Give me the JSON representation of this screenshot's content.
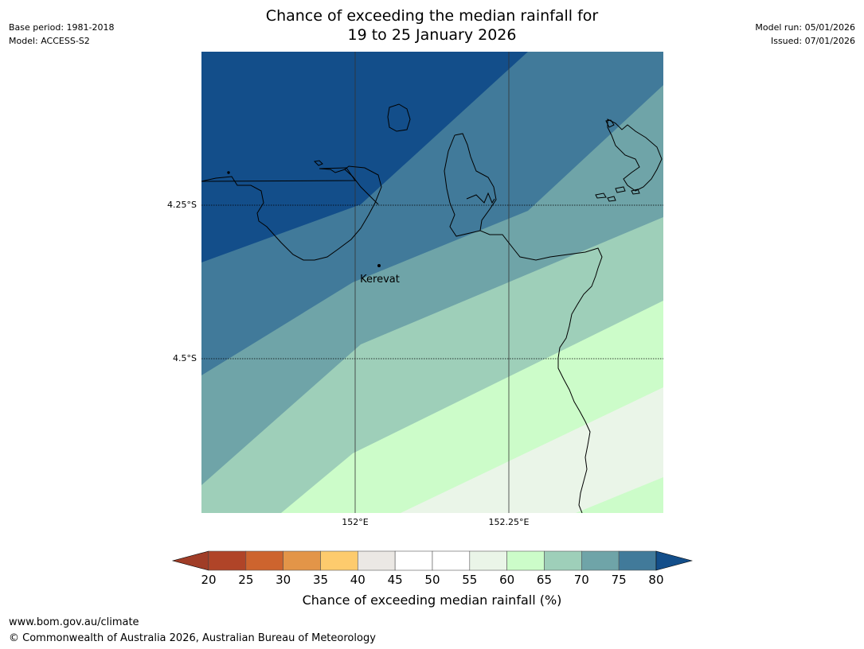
{
  "title": {
    "line1": "Chance of exceeding the median rainfall for",
    "line2": "19 to 25 January 2026"
  },
  "meta_left": {
    "base_period": "Base period: 1981-2018",
    "model": "Model: ACCESS-S2"
  },
  "meta_right": {
    "model_run": "Model run: 05/01/2026",
    "issued": "Issued: 07/01/2026"
  },
  "map": {
    "lat_labels": [
      "4.25°S",
      "4.5°S"
    ],
    "lon_labels": [
      "152°E",
      "152.25°E"
    ],
    "place": {
      "name": "Kerevat"
    },
    "zone_colors": {
      "above_75": "#134e8a",
      "70_75": "#417a9a",
      "65_70": "#6fa4a8",
      "60_65": "#9ecfb9",
      "55_60": "#ccfcc9",
      "50_55": "#eaf5e8"
    }
  },
  "colorbar": {
    "ticks": [
      "20",
      "25",
      "30",
      "35",
      "40",
      "45",
      "50",
      "55",
      "60",
      "65",
      "70",
      "75",
      "80"
    ],
    "colors": [
      "#b04428",
      "#cd642e",
      "#e39548",
      "#fdcb6d",
      "#ebe8e4",
      "#ffffff",
      "#ffffff",
      "#eaf5e8",
      "#ccfcc9",
      "#9ecfb9",
      "#6fa4a8",
      "#417a9a"
    ],
    "under_color": "#a03d27",
    "over_color": "#134e8a",
    "label": "Chance of exceeding median rainfall (%)"
  },
  "footer": {
    "url": "www.bom.gov.au/climate",
    "copyright": "© Commonwealth of Australia 2026, Australian Bureau of Meteorology"
  }
}
